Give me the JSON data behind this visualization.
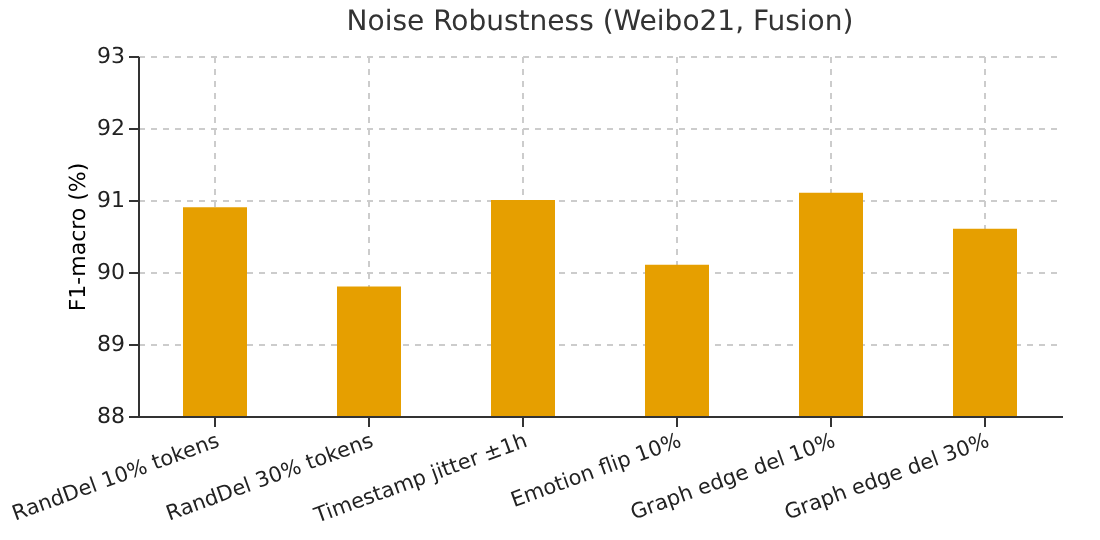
{
  "chart_data": {
    "type": "bar",
    "title": "Noise Robustness (Weibo21, Fusion)",
    "ylabel": "F1-macro (%)",
    "categories": [
      "RandDel 10% tokens",
      "RandDel 30% tokens",
      "Timestamp jitter ±1h",
      "Emotion flip 10%",
      "Graph edge del 10%",
      "Graph edge del 30%"
    ],
    "values": [
      90.9,
      89.8,
      91.0,
      90.1,
      91.1,
      90.6
    ],
    "color": "#e69f00",
    "ylim": [
      88,
      93
    ],
    "yticks": [
      88,
      89,
      90,
      91,
      92,
      93
    ],
    "grid": true
  }
}
